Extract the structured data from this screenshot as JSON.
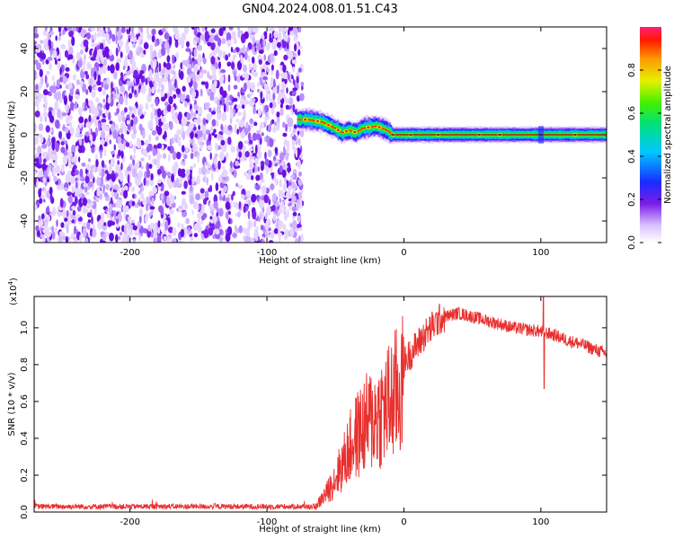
{
  "title": "GN04.2024.008.01.51.C43",
  "spectrogram": {
    "type": "heatmap",
    "xlabel": "Height of straight line (km)",
    "ylabel": "Frequency (Hz)",
    "xlim": [
      -270,
      148
    ],
    "ylim": [
      -50,
      50
    ],
    "x_ticks": [
      -200,
      -100,
      0,
      100
    ],
    "y_ticks": [
      -40,
      -20,
      0,
      20,
      40
    ],
    "noise_region_x": [
      -270,
      -78
    ],
    "ridge_x": [
      -78,
      -70,
      -60,
      -50,
      -45,
      -40,
      -35,
      -30,
      -20,
      -12,
      -8,
      0,
      20,
      50,
      80,
      100,
      120,
      148
    ],
    "ridge_y": [
      7,
      7,
      6,
      3,
      1,
      2,
      1,
      3,
      4,
      2,
      0,
      0,
      0,
      0,
      0,
      0,
      0,
      0
    ],
    "colorbar": {
      "label": "Normalized spectral amplitude",
      "ticks": [
        0.0,
        0.2,
        0.4,
        0.6,
        0.8
      ],
      "range": [
        0,
        1
      ]
    }
  },
  "snr": {
    "type": "line",
    "xlabel": "Height of straight line (km)",
    "ylabel": "SNR (10 * v/v)",
    "exponent_label": "(x10",
    "exponent_power": "4",
    "exponent_close": ")",
    "xlim": [
      -270,
      148
    ],
    "ylim": [
      0,
      1.17
    ],
    "x_ticks": [
      -200,
      -100,
      0,
      100
    ],
    "y_ticks": [
      0.0,
      0.2,
      0.4,
      0.6,
      0.8,
      1.0
    ],
    "line_color": "#e8302e",
    "envelope_x": [
      -270,
      -65,
      -62,
      -55,
      -50,
      -45,
      -40,
      -35,
      -30,
      -25,
      -20,
      -15,
      -10,
      -5,
      0,
      5,
      10,
      15,
      20,
      25,
      30,
      35,
      40,
      50,
      60,
      70,
      80,
      90,
      100,
      110,
      120,
      130,
      140,
      148
    ],
    "envelope_y": [
      0.03,
      0.03,
      0.06,
      0.14,
      0.22,
      0.3,
      0.4,
      0.48,
      0.54,
      0.58,
      0.61,
      0.65,
      0.7,
      0.76,
      0.81,
      0.86,
      0.91,
      0.96,
      1.0,
      1.04,
      1.06,
      1.07,
      1.08,
      1.06,
      1.04,
      1.02,
      1.0,
      0.99,
      0.98,
      0.96,
      0.93,
      0.91,
      0.88,
      0.86
    ],
    "spike_x": 102,
    "spike_range": [
      0.67,
      1.17
    ]
  },
  "colors": {
    "noise": "#7a1ee8",
    "frame": "#000000"
  }
}
